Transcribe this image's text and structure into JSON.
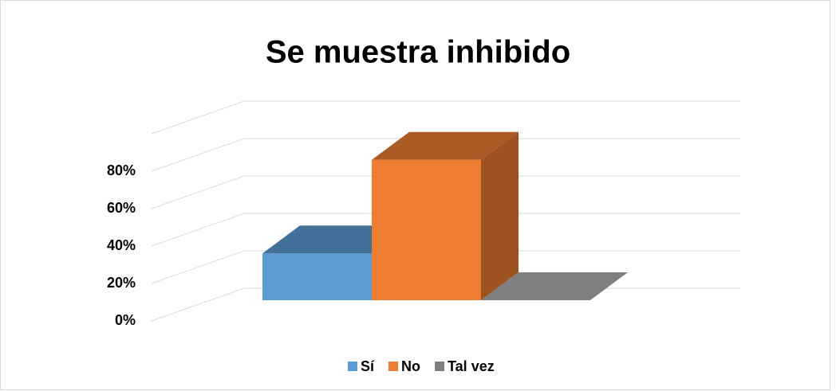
{
  "chart_data": {
    "type": "bar3d",
    "title": "Se muestra inhibido",
    "categories": [
      "Sí",
      "No",
      "Tal vez"
    ],
    "series": [
      {
        "name": "Sí",
        "color": "#5b9bd5",
        "values": [
          25,
          null,
          null
        ]
      },
      {
        "name": "No",
        "color": "#ed7d31",
        "values": [
          null,
          75,
          null
        ]
      },
      {
        "name": "Tal vez",
        "color": "#7f7f7f",
        "values": [
          null,
          null,
          0
        ]
      }
    ],
    "ylim": [
      0,
      100
    ],
    "yticks": [
      {
        "value": 0,
        "label": "0%"
      },
      {
        "value": 20,
        "label": "20%"
      },
      {
        "value": 40,
        "label": "40%"
      },
      {
        "value": 60,
        "label": "60%"
      },
      {
        "value": 80,
        "label": "80%"
      }
    ],
    "grid": true,
    "legend": "bottom"
  }
}
